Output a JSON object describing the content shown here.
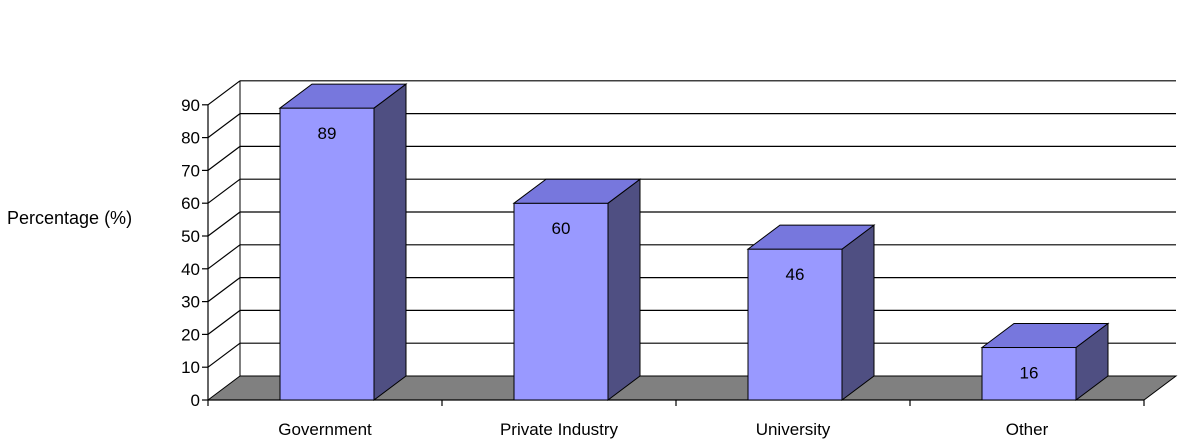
{
  "chart_data": {
    "type": "bar",
    "categories": [
      "Government",
      "Private Industry",
      "University",
      "Other"
    ],
    "values": [
      89,
      60,
      46,
      16
    ],
    "data_labels": [
      "89",
      "60",
      "46",
      "16"
    ],
    "title": "",
    "xlabel": "",
    "ylabel": "Percentage (%)",
    "ylim": [
      0,
      90
    ],
    "yticks": [
      0,
      10,
      20,
      30,
      40,
      50,
      60,
      70,
      80,
      90
    ],
    "grid": true,
    "legend": "none",
    "style": "3d-column",
    "colors": {
      "bar_front": "#9999ff",
      "bar_top": "#7777dd",
      "bar_side": "#4f4f82",
      "floor": "#808080",
      "gridline": "#000000",
      "outline": "#000000"
    }
  }
}
